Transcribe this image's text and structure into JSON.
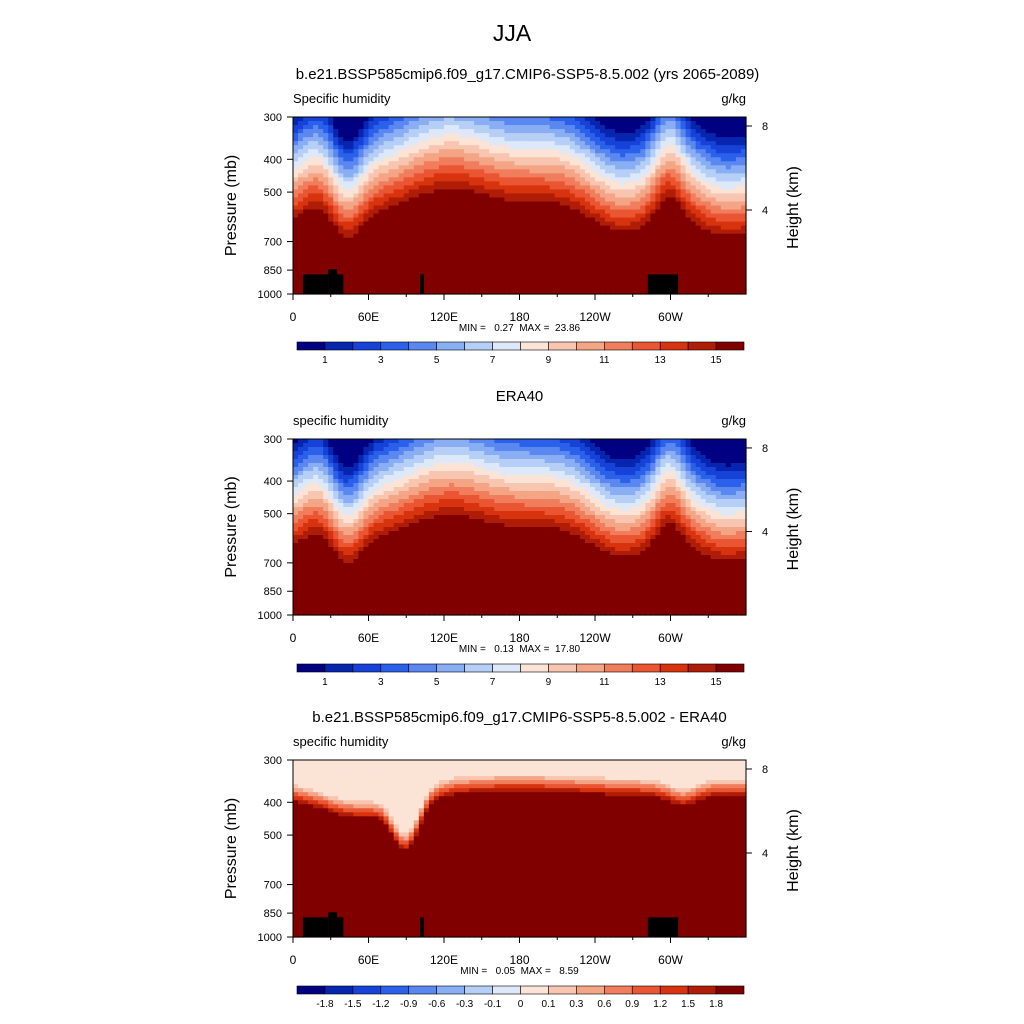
{
  "title": "JJA",
  "chart_data": [
    {
      "type": "heatmap",
      "title": "b.e21.BSSP585cmip6.f09_g17.CMIP6-SSP5-8.5.002 (yrs 2065-2089)",
      "variable": "Specific humidity",
      "units": "g/kg",
      "ylabel": "Pressure (mb)",
      "y2label": "Height (km)",
      "x_ticks": [
        "0",
        "60E",
        "120E",
        "180",
        "120W",
        "60W"
      ],
      "x_tick_values": [
        0,
        60,
        120,
        180,
        240,
        300
      ],
      "xlim": [
        0,
        360
      ],
      "y_ticks": [
        "300",
        "400",
        "500",
        "700",
        "850",
        "1000"
      ],
      "y_tick_values": [
        300,
        400,
        500,
        700,
        850,
        1000
      ],
      "ylim": [
        1000,
        300
      ],
      "y_scale": "log",
      "y2_ticks": [
        "8",
        "4"
      ],
      "y2_tick_values": [
        8,
        4
      ],
      "min_label": "MIN =   0.27  MAX =  23.86",
      "min": 0.27,
      "max": 23.86,
      "colorbar_labels": [
        "1",
        "3",
        "5",
        "7",
        "9",
        "11",
        "13",
        "15"
      ],
      "colorbar_colors": [
        "#000080",
        "#0626b0",
        "#1642d8",
        "#2b61ea",
        "#5a88f0",
        "#8aaef3",
        "#b6cff6",
        "#dde8f8",
        "#fbe3d6",
        "#f7c5b0",
        "#f4a585",
        "#f07d5c",
        "#ea5532",
        "#d8330f",
        "#b01d06",
        "#800000"
      ],
      "mask": "terrain"
    },
    {
      "type": "heatmap",
      "title": "ERA40",
      "variable": "specific humidity",
      "units": "g/kg",
      "ylabel": "Pressure (mb)",
      "y2label": "Height (km)",
      "x_ticks": [
        "0",
        "60E",
        "120E",
        "180",
        "120W",
        "60W"
      ],
      "x_tick_values": [
        0,
        60,
        120,
        180,
        240,
        300
      ],
      "xlim": [
        0,
        360
      ],
      "y_ticks": [
        "300",
        "400",
        "500",
        "700",
        "850",
        "1000"
      ],
      "y_tick_values": [
        300,
        400,
        500,
        700,
        850,
        1000
      ],
      "ylim": [
        1000,
        300
      ],
      "y_scale": "log",
      "y2_ticks": [
        "8",
        "4"
      ],
      "y2_tick_values": [
        8,
        4
      ],
      "min_label": "MIN =   0.13  MAX =  17.80",
      "min": 0.13,
      "max": 17.8,
      "colorbar_labels": [
        "1",
        "3",
        "5",
        "7",
        "9",
        "11",
        "13",
        "15"
      ],
      "colorbar_colors": [
        "#000080",
        "#0626b0",
        "#1642d8",
        "#2b61ea",
        "#5a88f0",
        "#8aaef3",
        "#b6cff6",
        "#dde8f8",
        "#fbe3d6",
        "#f7c5b0",
        "#f4a585",
        "#f07d5c",
        "#ea5532",
        "#d8330f",
        "#b01d06",
        "#800000"
      ],
      "mask": "none"
    },
    {
      "type": "heatmap",
      "title": "b.e21.BSSP585cmip6.f09_g17.CMIP6-SSP5-8.5.002 - ERA40",
      "variable": "specific humidity",
      "units": "g/kg",
      "ylabel": "Pressure (mb)",
      "y2label": "Height (km)",
      "x_ticks": [
        "0",
        "60E",
        "120E",
        "180",
        "120W",
        "60W"
      ],
      "x_tick_values": [
        0,
        60,
        120,
        180,
        240,
        300
      ],
      "xlim": [
        0,
        360
      ],
      "y_ticks": [
        "300",
        "400",
        "500",
        "700",
        "850",
        "1000"
      ],
      "y_tick_values": [
        300,
        400,
        500,
        700,
        850,
        1000
      ],
      "ylim": [
        1000,
        300
      ],
      "y_scale": "log",
      "y2_ticks": [
        "8",
        "4"
      ],
      "y2_tick_values": [
        8,
        4
      ],
      "min_label": "MIN =   0.05  MAX =   8.59",
      "min": 0.05,
      "max": 8.59,
      "colorbar_labels": [
        "-1.8",
        "-1.5",
        "-1.2",
        "-0.9",
        "-0.6",
        "-0.3",
        "-0.1",
        "0",
        "0.1",
        "0.3",
        "0.6",
        "0.9",
        "1.2",
        "1.5",
        "1.8"
      ],
      "colorbar_colors": [
        "#000080",
        "#0626b0",
        "#1642d8",
        "#2b61ea",
        "#5a88f0",
        "#8aaef3",
        "#b6cff6",
        "#dde8f8",
        "#fbe3d6",
        "#f7c5b0",
        "#f4a585",
        "#f07d5c",
        "#ea5532",
        "#d8330f",
        "#b01d06",
        "#800000"
      ],
      "mask": "terrain"
    }
  ]
}
